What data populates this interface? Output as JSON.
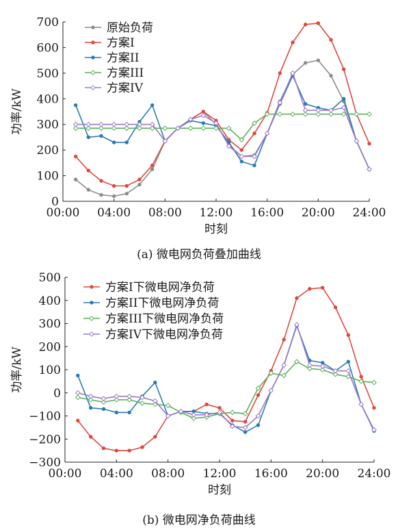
{
  "chart_data": [
    {
      "type": "line",
      "caption": "(a) 微电网负荷叠加曲线",
      "xlabel": "时刻",
      "ylabel": "功率/kW",
      "xlim": [
        0,
        24
      ],
      "ylim": [
        0,
        700
      ],
      "x_ticks": [
        "00:00",
        "04:00",
        "08:00",
        "12:00",
        "16:00",
        "20:00",
        "24:00"
      ],
      "y_ticks": [
        "0",
        "100",
        "200",
        "300",
        "400",
        "500",
        "600",
        "700"
      ],
      "legend_position": "top-left",
      "x": [
        1,
        2,
        3,
        4,
        5,
        6,
        7,
        8,
        9,
        10,
        11,
        12,
        13,
        14,
        15,
        16,
        17,
        18,
        19,
        20,
        21,
        22,
        23,
        24
      ],
      "series": [
        {
          "name": "原始负荷",
          "color": "#8c8c8c",
          "marker": "circle",
          "values": [
            85,
            45,
            25,
            20,
            30,
            65,
            125,
            235,
            285,
            320,
            350,
            300,
            220,
            175,
            180,
            265,
            390,
            495,
            540,
            550,
            490,
            390,
            235,
            125
          ]
        },
        {
          "name": "方案I",
          "color": "#e0483c",
          "marker": "circle",
          "values": [
            175,
            120,
            80,
            60,
            60,
            85,
            140,
            235,
            285,
            320,
            350,
            315,
            240,
            200,
            265,
            345,
            500,
            620,
            690,
            695,
            630,
            515,
            340,
            225
          ]
        },
        {
          "name": "方案II",
          "color": "#2a7ab8",
          "marker": "circle",
          "values": [
            375,
            250,
            255,
            230,
            230,
            310,
            375,
            235,
            285,
            315,
            305,
            295,
            230,
            155,
            140,
            265,
            380,
            490,
            380,
            365,
            355,
            400,
            235,
            125
          ]
        },
        {
          "name": "方案III",
          "color": "#58b058",
          "marker": "diamond",
          "values": [
            285,
            285,
            285,
            285,
            285,
            285,
            285,
            285,
            285,
            285,
            285,
            285,
            285,
            240,
            305,
            340,
            340,
            340,
            340,
            340,
            340,
            340,
            340,
            340
          ]
        },
        {
          "name": "方案IV",
          "color": "#9b78c8",
          "marker": "diamond",
          "values": [
            300,
            300,
            300,
            300,
            300,
            300,
            300,
            235,
            285,
            320,
            335,
            305,
            215,
            175,
            175,
            265,
            385,
            500,
            355,
            355,
            355,
            365,
            235,
            125
          ]
        }
      ]
    },
    {
      "type": "line",
      "caption": "(b) 微电网净负荷曲线",
      "xlabel": "时刻",
      "ylabel": "功率/kW",
      "xlim": [
        0,
        24
      ],
      "ylim": [
        -300,
        500
      ],
      "x_ticks": [
        "00:00",
        "04:00",
        "08:00",
        "12:00",
        "16:00",
        "20:00",
        "24:00"
      ],
      "y_ticks": [
        "−300",
        "−200",
        "−100",
        "0",
        "100",
        "200",
        "300",
        "400",
        "500"
      ],
      "legend_position": "top-left",
      "x": [
        1,
        2,
        3,
        4,
        5,
        6,
        7,
        8,
        9,
        10,
        11,
        12,
        13,
        14,
        15,
        16,
        17,
        18,
        19,
        20,
        21,
        22,
        23,
        24
      ],
      "series": [
        {
          "name": "方案I下微电网净负荷",
          "color": "#e0483c",
          "marker": "circle",
          "values": [
            -120,
            -190,
            -240,
            -250,
            -250,
            -235,
            -190,
            -100,
            -80,
            -80,
            -50,
            -65,
            -120,
            -125,
            -10,
            95,
            230,
            410,
            450,
            455,
            370,
            250,
            70,
            -65
          ]
        },
        {
          "name": "方案II下微电网净负荷",
          "color": "#2a7ab8",
          "marker": "circle",
          "values": [
            75,
            -65,
            -70,
            -85,
            -85,
            -15,
            45,
            -100,
            -80,
            -80,
            -90,
            -90,
            -140,
            -170,
            -140,
            10,
            120,
            290,
            140,
            130,
            95,
            135,
            -50,
            -165
          ]
        },
        {
          "name": "方案III下微电网净负荷",
          "color": "#58b058",
          "marker": "diamond",
          "values": [
            -20,
            -30,
            -40,
            -30,
            -30,
            -45,
            -50,
            -55,
            -85,
            -110,
            -105,
            -90,
            -85,
            -90,
            20,
            85,
            75,
            135,
            105,
            100,
            80,
            70,
            50,
            45
          ]
        },
        {
          "name": "方案IV下微电网净负荷",
          "color": "#9b78c8",
          "marker": "diamond",
          "values": [
            0,
            -15,
            -25,
            -15,
            -15,
            -20,
            -35,
            -100,
            -80,
            -95,
            -95,
            -85,
            -145,
            -150,
            -100,
            10,
            120,
            295,
            120,
            115,
            95,
            95,
            -50,
            -160
          ]
        }
      ]
    }
  ]
}
